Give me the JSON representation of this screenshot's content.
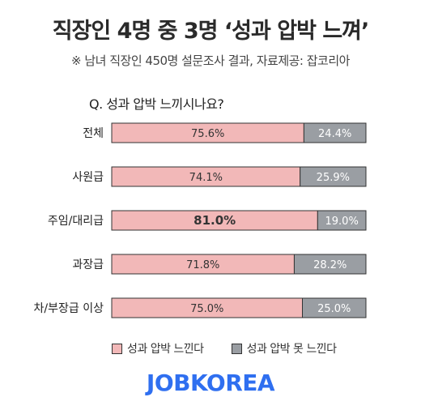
{
  "title": "직장인 4명 중 3명 ‘성과 압박 느껴’",
  "subtitle": "※ 남녀 직장인 450명 설문조사 결과, 자료제공: 잡코리아",
  "question": "Q. 성과 압박 느끼시나요?",
  "brand": "JOBKOREA",
  "colors": {
    "feel": "#f2b8b8",
    "not_feel": "#9a9ea3",
    "border": "#333333",
    "brand": "#2f6ff0"
  },
  "chart_data": {
    "type": "bar",
    "orientation": "horizontal",
    "stacked": true,
    "categories": [
      "전체",
      "사원급",
      "주임/대리급",
      "과장급",
      "차/부장급 이상"
    ],
    "series": [
      {
        "name": "성과 압박 느낀다",
        "values": [
          75.6,
          74.1,
          81.0,
          71.8,
          75.0
        ],
        "labels": [
          "75.6%",
          "74.1%",
          "81.0%",
          "71.8%",
          "75.0%"
        ]
      },
      {
        "name": "성과 압박 못 느낀다",
        "values": [
          24.4,
          25.9,
          19.0,
          28.2,
          25.0
        ],
        "labels": [
          "24.4%",
          "25.9%",
          "19.0%",
          "28.2%",
          "25.0%"
        ]
      }
    ],
    "xlim": [
      0,
      100
    ],
    "legend_position": "bottom",
    "grid": false
  }
}
